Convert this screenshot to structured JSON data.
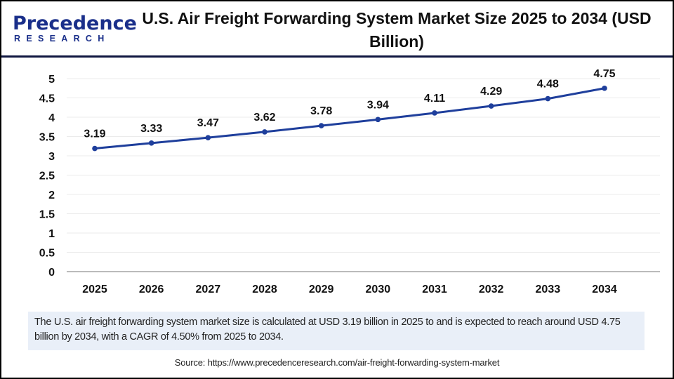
{
  "logo": {
    "line1": "Precedence",
    "line2": "RESEARCH",
    "color": "#1a2f8a"
  },
  "title": "U.S. Air Freight Forwarding System Market Size 2025 to 2034 (USD Billion)",
  "chart_data": {
    "type": "line",
    "title": "U.S. Air Freight Forwarding System Market Size 2025 to 2034 (USD Billion)",
    "categories": [
      "2025",
      "2026",
      "2027",
      "2028",
      "2029",
      "2030",
      "2031",
      "2032",
      "2033",
      "2034"
    ],
    "values": [
      3.19,
      3.33,
      3.47,
      3.62,
      3.78,
      3.94,
      4.11,
      4.29,
      4.48,
      4.75
    ],
    "data_labels": [
      "3.19",
      "3.33",
      "3.47",
      "3.62",
      "3.78",
      "3.94",
      "4.11",
      "4.29",
      "4.48",
      "4.75"
    ],
    "y_ticks": [
      "0",
      "0.5",
      "1",
      "1.5",
      "2",
      "2.5",
      "3",
      "3.5",
      "4",
      "4.5",
      "5"
    ],
    "ylim": [
      0,
      5
    ],
    "grid": true,
    "line_color": "#1f3f9c",
    "xlabel": "",
    "ylabel": ""
  },
  "caption": "The U.S. air freight forwarding system market size is calculated at USD 3.19 billion in 2025 to and is expected to reach around USD 4.75 billion by 2034, with a CAGR of 4.50% from 2025 to 2034.",
  "source": "Source: https://www.precedenceresearch.com/air-freight-forwarding-system-market"
}
